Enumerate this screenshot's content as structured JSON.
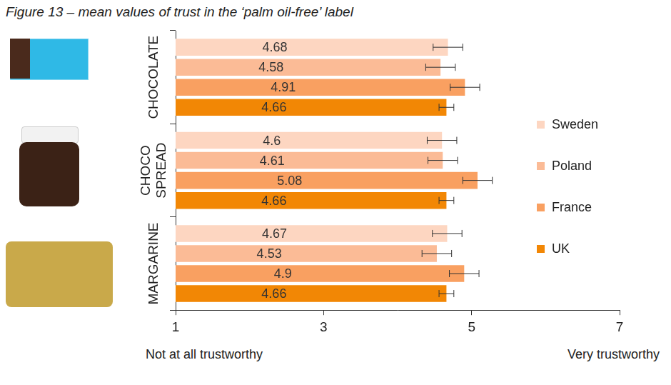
{
  "chart_data": {
    "type": "bar",
    "orientation": "horizontal",
    "title": "Figure 13 – mean values of trust in the ‘palm oil-free’ label",
    "categories": [
      "CHOCOLATE",
      "CHOCO SPREAD",
      "MARGARINE"
    ],
    "series": [
      {
        "name": "Sweden",
        "color": "#fdd6c1",
        "values": [
          4.68,
          4.6,
          4.67
        ],
        "errors": [
          0.2,
          0.2,
          0.2
        ]
      },
      {
        "name": "Poland",
        "color": "#fbbb96",
        "values": [
          4.58,
          4.61,
          4.53
        ],
        "errors": [
          0.2,
          0.2,
          0.2
        ]
      },
      {
        "name": "France",
        "color": "#f9a061",
        "values": [
          4.91,
          5.08,
          4.9
        ],
        "errors": [
          0.2,
          0.2,
          0.2
        ]
      },
      {
        "name": "UK",
        "color": "#f28705",
        "values": [
          4.66,
          4.66,
          4.66
        ],
        "errors": [
          0.1,
          0.1,
          0.1
        ]
      }
    ],
    "xlim": [
      1,
      7
    ],
    "xticks": [
      1,
      3,
      5,
      7
    ],
    "annotations": [
      "Not at all trustworthy",
      "Very trustworthy"
    ],
    "data_labels": true,
    "grid": false,
    "legend": "right"
  }
}
